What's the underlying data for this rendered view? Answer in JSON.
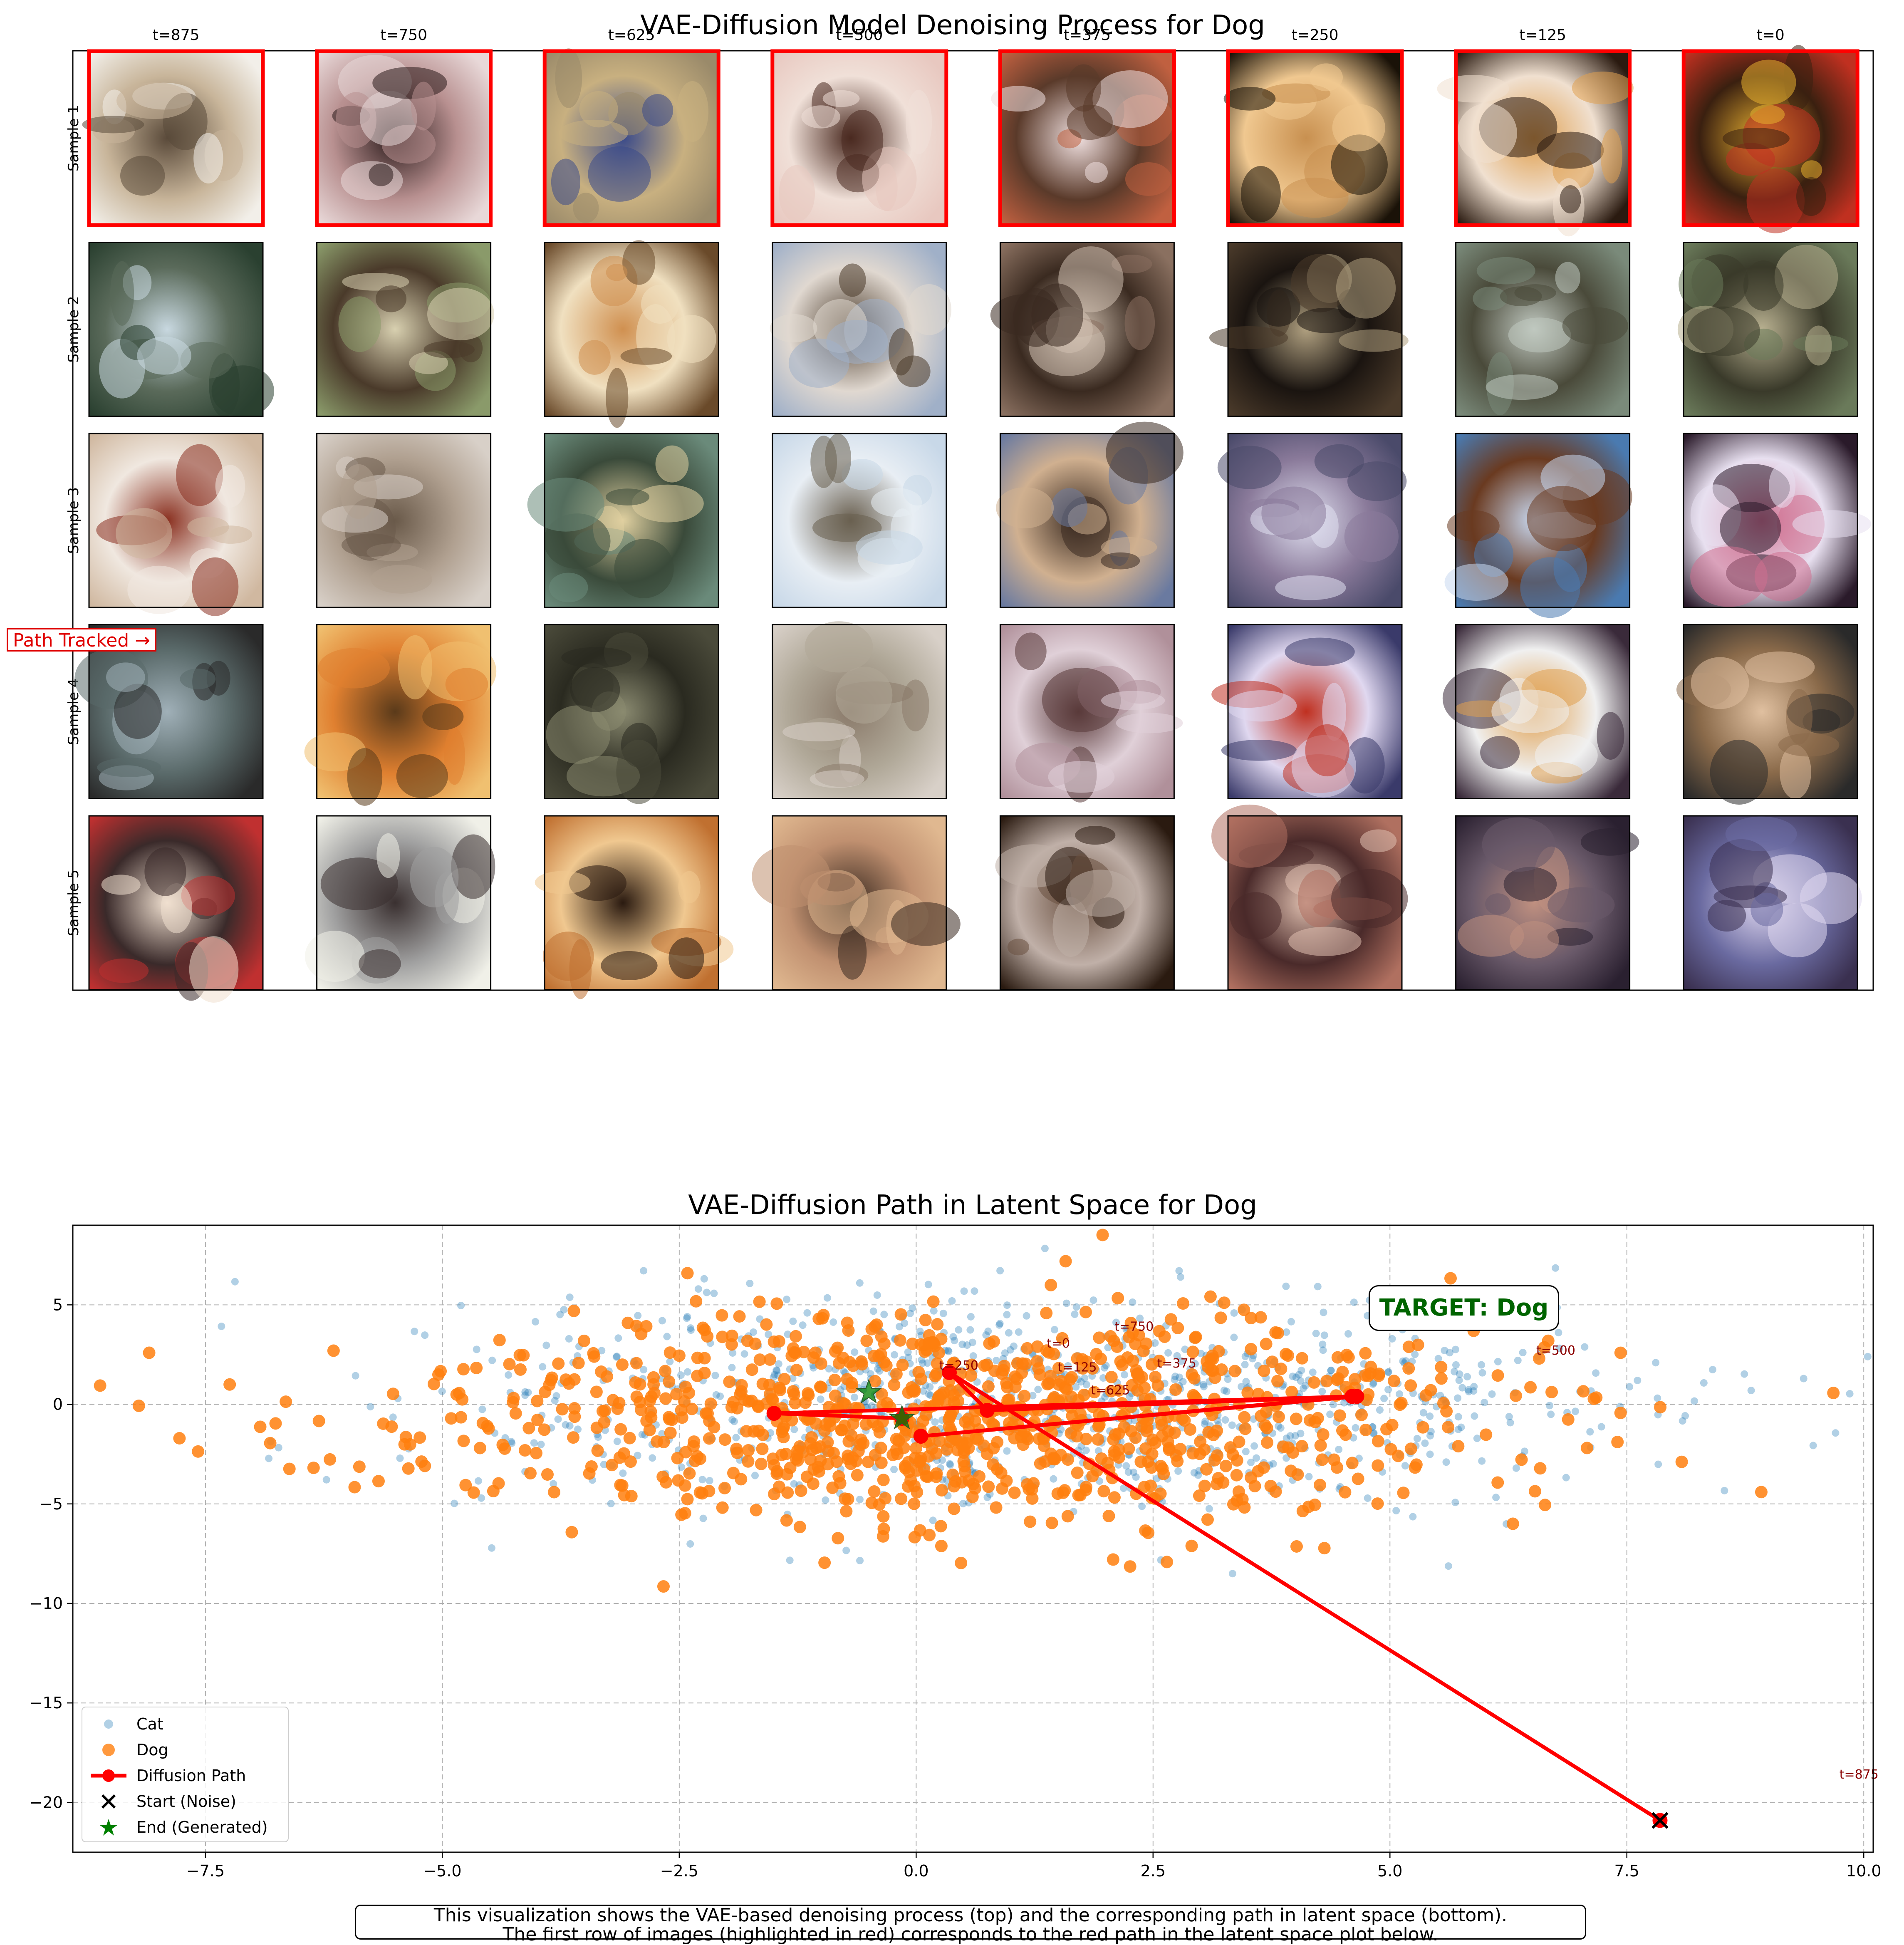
{
  "figure": {
    "top_title": "VAE-Diffusion Model Denoising Process for Dog",
    "bottom_title": "VAE-Diffusion Path in Latent Space for Dog",
    "caption_line1": "This visualization shows the VAE-based denoising process (top) and the corresponding path in latent space (bottom).",
    "caption_line2": "The first row of images (highlighted in red) corresponds to the red path in the latent space plot below.",
    "path_tracked_label": "Path Tracked →",
    "target_label": "TARGET: Dog"
  },
  "image_grid": {
    "column_titles": [
      "t=875",
      "t=750",
      "t=625",
      "t=500",
      "t=375",
      "t=250",
      "t=125",
      "t=0"
    ],
    "row_labels": [
      "Sample 1",
      "Sample 2",
      "Sample 3",
      "Sample 4",
      "Sample 5"
    ],
    "highlighted_row": 0,
    "highlight_color": "#ff0000",
    "tiles": [
      [
        [
          "#f2efe9",
          "#5a4a3a",
          "#c8b59a"
        ],
        [
          "#e8d8d8",
          "#2a1a1a",
          "#b89090"
        ],
        [
          "#9a8a6a",
          "#3a4a8a",
          "#c8b080"
        ],
        [
          "#e8c8c0",
          "#4a2a20",
          "#f0e0d8"
        ],
        [
          "#c06040",
          "#f0e0e0",
          "#5a3a2a"
        ],
        [
          "#1a1208",
          "#c89050",
          "#f0c890"
        ],
        [
          "#2a1a10",
          "#e0a050",
          "#f0e0d0"
        ],
        [
          "#c03020",
          "#e8b030",
          "#3a2010"
        ]
      ],
      [
        [
          "#2a4030",
          "#c8d8e0",
          "#5a6a5a"
        ],
        [
          "#8a9a6a",
          "#d8d0b0",
          "#4a3a2a"
        ],
        [
          "#6a4a2a",
          "#d09050",
          "#f0e0c0"
        ],
        [
          "#a0b0c8",
          "#4a3a2a",
          "#e0d8d0"
        ],
        [
          "#8a7060",
          "#d0c0b0",
          "#3a2a20"
        ],
        [
          "#4a3a2a",
          "#b0a080",
          "#1a1410"
        ],
        [
          "#7a8a7a",
          "#c0c8c0",
          "#4a4a3a"
        ],
        [
          "#6a7a5a",
          "#b8b090",
          "#3a3a2a"
        ]
      ],
      [
        [
          "#d0b8a0",
          "#8a3020",
          "#f0e8e0"
        ],
        [
          "#d8d0c8",
          "#6a5a4a",
          "#b0a090"
        ],
        [
          "#6a8a7a",
          "#e0d0a0",
          "#3a4a3a"
        ],
        [
          "#c8d8e8",
          "#6a6050",
          "#e8eef4"
        ],
        [
          "#6a7aa0",
          "#3a2a20",
          "#d0b090"
        ],
        [
          "#4a4a6a",
          "#e0e0f0",
          "#8a7a9a"
        ],
        [
          "#4a7ab0",
          "#c8d8f0",
          "#6a3a20"
        ],
        [
          "#2a1a2a",
          "#d07090",
          "#e8e0f0"
        ]
      ],
      [
        [
          "#2a2a2a",
          "#a0b0b8",
          "#5a6a6a"
        ],
        [
          "#f0c070",
          "#5a3a1a",
          "#e08030"
        ],
        [
          "#4a4a3a",
          "#8a8a70",
          "#2a2a20"
        ],
        [
          "#d8d0c8",
          "#8a7a6a",
          "#b0a898"
        ],
        [
          "#b0909a",
          "#5a3a3a",
          "#e0d0d8"
        ],
        [
          "#3a3a6a",
          "#c03020",
          "#e0d8f0"
        ],
        [
          "#3a2a3a",
          "#e0a050",
          "#f0f0f0"
        ],
        [
          "#2a2a2a",
          "#e0c0a0",
          "#8a6a4a"
        ]
      ],
      [
        [
          "#c03030",
          "#f0e0d0",
          "#3a2a2a"
        ],
        [
          "#f0f0e8",
          "#3a3030",
          "#a0a0a0"
        ],
        [
          "#c07030",
          "#2a1a10",
          "#f0c890"
        ],
        [
          "#e0b890",
          "#3a2a20",
          "#c09070"
        ],
        [
          "#2a1a10",
          "#6a5040",
          "#c0b0a8"
        ],
        [
          "#b07060",
          "#e0c0b0",
          "#4a2a2a"
        ],
        [
          "#2a2030",
          "#c09080",
          "#6a5a6a"
        ],
        [
          "#3a3050",
          "#e0d8f0",
          "#6a6aa0"
        ]
      ]
    ]
  },
  "chart_data": {
    "type": "scatter",
    "title": "VAE-Diffusion Path in Latent Space for Dog",
    "xlabel": "",
    "ylabel": "",
    "xlim": [
      -8.9,
      10.1
    ],
    "ylim": [
      -22.5,
      9.0
    ],
    "xticks": [
      -7.5,
      -5.0,
      -2.5,
      0.0,
      2.5,
      5.0,
      7.5,
      10.0
    ],
    "yticks": [
      5,
      0,
      -5,
      -10,
      -15,
      -20
    ],
    "grid": true,
    "legend_location": "lower-left",
    "legend": [
      "Cat",
      "Dog",
      "Diffusion Path",
      "Start (Noise)",
      "End (Generated)"
    ],
    "colors": {
      "cat": "#1f77b4",
      "dog": "#ff7f0e",
      "path": "#ff0000",
      "start": "#000000",
      "end": "#008000",
      "label": "#8b0000"
    },
    "cat_cloud": {
      "count": 1000,
      "x_mean": 1.2,
      "x_std": 3.0,
      "y_mean": 0.2,
      "y_std": 2.6
    },
    "dog_cloud": {
      "count": 1000,
      "x_mean": 0.3,
      "x_std": 2.9,
      "y_mean": -0.6,
      "y_std": 2.7
    },
    "path": [
      {
        "t": "t=875",
        "x": 7.85,
        "y": -20.9
      },
      {
        "t": "t=750",
        "x": 0.35,
        "y": 1.6
      },
      {
        "t": "t=625",
        "x": 0.75,
        "y": -0.3
      },
      {
        "t": "t=500",
        "x": 4.65,
        "y": 0.4
      },
      {
        "t": "t=375",
        "x": 0.05,
        "y": -1.6
      },
      {
        "t": "t=250",
        "x": 4.6,
        "y": 0.4
      },
      {
        "t": "t=125",
        "x": -1.5,
        "y": -0.45
      },
      {
        "t": "t=0",
        "x": -0.15,
        "y": -0.7
      }
    ],
    "path_labels": [
      {
        "text": "t=875",
        "x": 9.95,
        "y": -18.8
      },
      {
        "text": "t=750",
        "x": 2.3,
        "y": 3.7
      },
      {
        "text": "t=625",
        "x": 2.05,
        "y": 0.5
      },
      {
        "text": "t=500",
        "x": 6.75,
        "y": 2.5
      },
      {
        "text": "t=375",
        "x": 2.75,
        "y": 1.85
      },
      {
        "text": "t=250",
        "x": 0.45,
        "y": 1.75
      },
      {
        "text": "t=125",
        "x": 1.7,
        "y": 1.65
      },
      {
        "text": "t=0",
        "x": 1.5,
        "y": 2.85
      }
    ],
    "start_point": {
      "x": 7.85,
      "y": -20.9
    },
    "end_points": [
      {
        "x": -0.5,
        "y": 0.6
      },
      {
        "x": -0.15,
        "y": -0.7
      }
    ]
  }
}
